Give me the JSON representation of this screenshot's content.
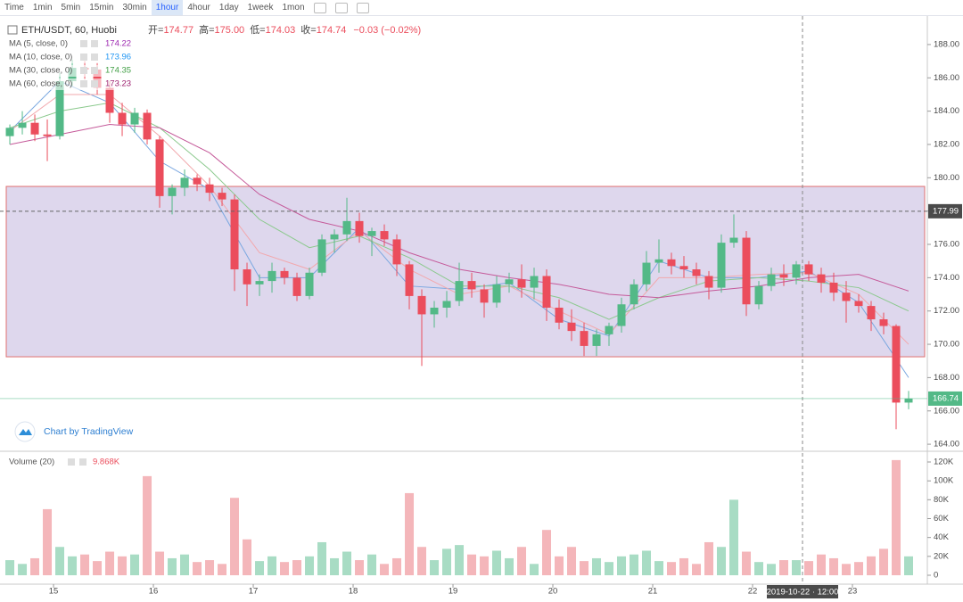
{
  "toolbar": {
    "items": [
      "Time",
      "1min",
      "5min",
      "15min",
      "30min",
      "1hour",
      "4hour",
      "1day",
      "1week",
      "1mon"
    ],
    "active": 5
  },
  "chart_data": {
    "type": "candlestick",
    "title": "ETH/USDT, 60, Huobi",
    "ohlc_legend": [
      {
        "label": "开=",
        "value": "174.77"
      },
      {
        "label": "高=",
        "value": "175.00"
      },
      {
        "label": "低=",
        "value": "174.03"
      },
      {
        "label": "收=",
        "value": "174.74"
      }
    ],
    "change": "−0.03 (−0.02%)",
    "up_color": "#53b987",
    "down_color": "#eb4d5c",
    "x": [
      14.5625,
      14.6875,
      14.8125,
      14.9375,
      15.0625,
      15.1875,
      15.3125,
      15.4375,
      15.5625,
      15.6875,
      15.8125,
      15.9375,
      16.0625,
      16.1875,
      16.3125,
      16.4375,
      16.5625,
      16.6875,
      16.8125,
      16.9375,
      17.0625,
      17.1875,
      17.3125,
      17.4375,
      17.5625,
      17.6875,
      17.8125,
      17.9375,
      18.0625,
      18.1875,
      18.3125,
      18.4375,
      18.5625,
      18.6875,
      18.8125,
      18.9375,
      19.0625,
      19.1875,
      19.3125,
      19.4375,
      19.5625,
      19.6875,
      19.8125,
      19.9375,
      20.0625,
      20.1875,
      20.3125,
      20.4375,
      20.5625,
      20.6875,
      20.8125,
      20.9375,
      21.0625,
      21.1875,
      21.3125,
      21.4375,
      21.5625,
      21.6875,
      21.8125,
      21.9375,
      22.0625,
      22.1875,
      22.3125,
      22.4375,
      22.5625,
      22.6875,
      22.8125,
      22.9375,
      23.0625,
      23.1875,
      23.3125,
      23.4375,
      23.5625
    ],
    "open": [
      182.5,
      183,
      183.3,
      182.6,
      182.5,
      185.8,
      186.6,
      186.5,
      185.4,
      183.9,
      183.2,
      183.9,
      182.3,
      178.9,
      179.4,
      180,
      179.6,
      179.1,
      178.7,
      174.5,
      173.6,
      173.8,
      174.4,
      174,
      172.9,
      174.3,
      176.3,
      176.6,
      177.4,
      176.5,
      176.8,
      176.3,
      174.8,
      172.9,
      171.8,
      172.2,
      172.6,
      173.8,
      173.3,
      172.5,
      173.6,
      173.9,
      173.4,
      174.1,
      172.2,
      171.3,
      170.8,
      169.9,
      170.6,
      171.1,
      172.4,
      173.6,
      174.9,
      175.1,
      174.7,
      174.5,
      174.1,
      173.4,
      176.1,
      176.4,
      172.4,
      173.5,
      174.2,
      174,
      174.8,
      174.2,
      173.7,
      173.1,
      172.6,
      172.3,
      171.5,
      171.1,
      166.5
    ],
    "high": [
      183.2,
      184,
      183.8,
      183.5,
      186.3,
      187.1,
      187,
      186.9,
      185.8,
      184.5,
      184.2,
      184.1,
      182.5,
      179.6,
      180.5,
      180.2,
      180,
      179.4,
      179,
      174.9,
      174.2,
      174.9,
      174.6,
      174.3,
      174.6,
      176.6,
      176.9,
      178.8,
      177.9,
      177,
      177.2,
      176.6,
      175,
      173.3,
      172.6,
      173.2,
      174.9,
      174.3,
      173.6,
      174.1,
      174.3,
      174.8,
      174.6,
      174.5,
      172.7,
      172.1,
      171.3,
      170.9,
      171.3,
      172.8,
      173.9,
      175.6,
      176.3,
      175.5,
      175.3,
      174.9,
      174.4,
      176.6,
      177.8,
      176.8,
      173.8,
      174.6,
      174.8,
      175,
      175,
      174.6,
      174.3,
      173.8,
      173,
      172.6,
      171.9,
      171.2,
      167.2
    ],
    "low": [
      182,
      182.6,
      182.2,
      181,
      182.3,
      185.5,
      185.9,
      185,
      183.3,
      182.5,
      182.7,
      182,
      178.2,
      177.8,
      178.9,
      179.2,
      178.6,
      178.3,
      173.2,
      172.3,
      172.9,
      173.1,
      173.6,
      172.6,
      172.7,
      174.1,
      175.5,
      176.2,
      176.1,
      175.3,
      175.9,
      174.1,
      172.1,
      168.7,
      171,
      171.6,
      172.3,
      172.8,
      171.6,
      172.2,
      173.1,
      172.8,
      172.7,
      171.4,
      170.9,
      170.2,
      169.3,
      169.3,
      169.9,
      170.7,
      172.1,
      173.2,
      174.3,
      174.2,
      174,
      173.6,
      172.7,
      173.1,
      175.8,
      171.7,
      172.1,
      173.2,
      173.5,
      173.6,
      173.8,
      173.1,
      172.6,
      171.3,
      171.9,
      170.8,
      170.6,
      164.9,
      166.1
    ],
    "close": [
      183,
      183.3,
      182.6,
      182.5,
      185.8,
      186.6,
      186.5,
      185.4,
      183.9,
      183.2,
      183.9,
      182.3,
      178.9,
      179.4,
      180,
      179.6,
      179.1,
      178.7,
      174.5,
      173.6,
      173.8,
      174.4,
      174,
      172.9,
      174.3,
      176.3,
      176.6,
      177.4,
      176.5,
      176.8,
      176.3,
      174.8,
      172.9,
      171.8,
      172.2,
      172.6,
      173.8,
      173.3,
      172.5,
      173.6,
      173.9,
      173.4,
      174.1,
      172.2,
      171.3,
      170.8,
      169.9,
      170.6,
      171.1,
      172.4,
      173.6,
      174.9,
      175.1,
      174.7,
      174.5,
      174.1,
      173.4,
      176.1,
      176.4,
      172.4,
      173.5,
      174.2,
      174,
      174.8,
      174.2,
      173.7,
      173.1,
      172.6,
      172.3,
      171.5,
      171.1,
      166.5,
      166.74
    ],
    "xlim": [
      14.464,
      23.75
    ],
    "xticks": [
      15,
      16,
      17,
      18,
      19,
      20,
      21,
      22,
      23
    ],
    "ylim": [
      163.63,
      189.71
    ],
    "yticks": [
      {
        "value": 164,
        "label": "164.00"
      },
      {
        "value": 166,
        "label": "166.00"
      },
      {
        "value": 168,
        "label": "168.00"
      },
      {
        "value": 170,
        "label": "170.00"
      },
      {
        "value": 172,
        "label": "172.00"
      },
      {
        "value": 174,
        "label": "174.00"
      },
      {
        "value": 176,
        "label": "176.00"
      },
      {
        "value": 178,
        "label": "178.00"
      },
      {
        "value": 180,
        "label": "180.00"
      },
      {
        "value": 182,
        "label": "182.00"
      },
      {
        "value": 184,
        "label": "184.00"
      },
      {
        "value": 186,
        "label": "186.00"
      },
      {
        "value": 188,
        "label": "188.00"
      }
    ],
    "ma": [
      {
        "name": "MA (5, close, 0)",
        "last": "174.22",
        "color": "#7aa7e0",
        "label_color": "#9c27b0",
        "x": [
          14.5625,
          15.0625,
          15.5625,
          16.0625,
          16.5625,
          17.0625,
          17.5625,
          18.0625,
          18.5625,
          19.0625,
          19.5625,
          20.0625,
          20.5625,
          21.0625,
          21.5625,
          22.0625,
          22.5625,
          23.0625,
          23.5625
        ],
        "values": [
          182.8,
          185.8,
          184.5,
          181,
          179.3,
          174,
          174,
          177,
          173.5,
          173.3,
          173.7,
          171.5,
          170.5,
          175,
          174,
          174,
          174.4,
          172.5,
          168
        ]
      },
      {
        "name": "MA (10, close, 0)",
        "last": "173.96",
        "color": "#f2a8ad",
        "label_color": "#2196f3",
        "x": [
          14.5625,
          15.0625,
          15.5625,
          16.0625,
          16.5625,
          17.0625,
          17.5625,
          18.0625,
          18.5625,
          19.0625,
          19.5625,
          20.0625,
          20.5625,
          21.0625,
          21.5625,
          22.0625,
          22.5625,
          23.0625,
          23.5625
        ],
        "values": [
          182.8,
          185,
          185,
          182.5,
          179.5,
          175.5,
          174.5,
          176.8,
          174.5,
          173,
          173.5,
          172,
          170.6,
          174,
          174,
          174.2,
          174.3,
          173,
          170
        ]
      },
      {
        "name": "MA (30, close, 0)",
        "last": "174.35",
        "color": "#8bc98d",
        "label_color": "#43a047",
        "x": [
          14.5625,
          15.0625,
          15.5625,
          16.0625,
          16.5625,
          17.0625,
          17.5625,
          18.0625,
          18.5625,
          19.0625,
          19.5625,
          20.0625,
          20.5625,
          21.0625,
          21.5625,
          22.0625,
          22.5625,
          23.0625,
          23.5625
        ],
        "values": [
          183,
          184,
          184.5,
          183,
          180.5,
          177.5,
          175.8,
          176.5,
          175.2,
          173.5,
          173.5,
          172.8,
          171.5,
          172.8,
          173.8,
          174,
          173.8,
          173.4,
          172
        ]
      },
      {
        "name": "MA (60, close, 0)",
        "last": "173.23",
        "color": "#c55a9a",
        "label_color": "#9c1f6e",
        "x": [
          14.5625,
          15.0625,
          15.5625,
          16.0625,
          16.5625,
          17.0625,
          17.5625,
          18.0625,
          18.5625,
          19.0625,
          19.5625,
          20.0625,
          20.5625,
          21.0625,
          21.5625,
          22.0625,
          22.5625,
          23.0625,
          23.5625
        ],
        "values": [
          182,
          182.6,
          183.2,
          183,
          181.5,
          179,
          177.5,
          176.8,
          175.5,
          174.5,
          174,
          173.6,
          173,
          172.8,
          173.2,
          173.5,
          174,
          174.2,
          173.2
        ]
      }
    ],
    "zone": {
      "from": 169.25,
      "to": 179.48,
      "color": "#d8d0ea",
      "border": "#e07070"
    },
    "crosshair": {
      "x": 22.5,
      "x_label": "2019-10-22 · 12:00",
      "y": {
        "value": 177.99,
        "label": "177.99"
      }
    },
    "current": {
      "value": 166.74,
      "label": "166.74",
      "color": "#53b987"
    },
    "watermark": "Chart by TradingView",
    "volume": {
      "title": "Volume (20)",
      "last": "9.868K",
      "up_color": "#a8dcc4",
      "down_color": "#f4b6ba",
      "values": [
        16000,
        12000,
        18000,
        70000,
        30000,
        20000,
        22000,
        15000,
        25000,
        20000,
        22000,
        105000,
        25000,
        18000,
        22000,
        14000,
        16000,
        12000,
        82000,
        38000,
        15000,
        20000,
        14000,
        16000,
        20000,
        35000,
        18000,
        25000,
        16000,
        22000,
        12000,
        18000,
        87000,
        30000,
        16000,
        28000,
        32000,
        22000,
        20000,
        26000,
        18000,
        30000,
        12000,
        48000,
        20000,
        30000,
        15000,
        18000,
        14000,
        20000,
        22000,
        26000,
        15000,
        14000,
        18000,
        12000,
        35000,
        30000,
        80000,
        25000,
        14000,
        12000,
        16000,
        16000,
        15000,
        22000,
        18000,
        12000,
        14000,
        20000,
        28000,
        122000,
        20000
      ],
      "ylim": [
        -9449,
        130394
      ],
      "yticks": [
        0,
        {
          "value": 20000,
          "label": "20K"
        },
        {
          "value": 40000,
          "label": "40K"
        },
        {
          "value": 60000,
          "label": "60K"
        },
        {
          "value": 80000,
          "label": "80K"
        },
        {
          "value": 100000,
          "label": "100K"
        },
        {
          "value": 120000,
          "label": "120K"
        }
      ]
    }
  }
}
